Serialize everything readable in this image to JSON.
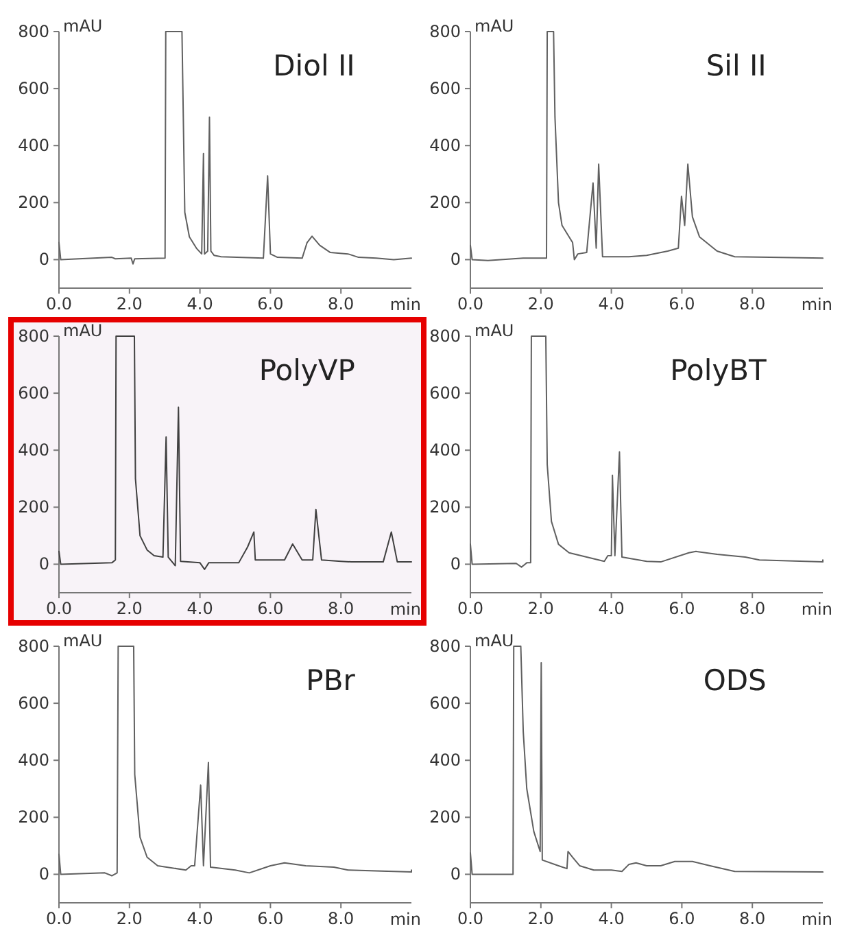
{
  "chart_data": [
    {
      "type": "line",
      "title": "Diol II",
      "xlabel": "min",
      "ylabel": "mAU",
      "xlim": [
        0,
        10
      ],
      "ylim": [
        -100,
        800
      ],
      "xticks": [
        {
          "value": 0,
          "label": "0.0"
        },
        {
          "value": 2,
          "label": "2.0"
        },
        {
          "value": 4,
          "label": "4.0"
        },
        {
          "value": 6,
          "label": "6.0"
        },
        {
          "value": 8,
          "label": "8.0"
        }
      ],
      "yticks": [
        0,
        200,
        400,
        600,
        800
      ],
      "series": [
        {
          "color": "#606060",
          "x": [
            0,
            0.05,
            1.5,
            1.6,
            2.05,
            2.1,
            2.15,
            3.01,
            3.03,
            3.49,
            3.57,
            3.7,
            3.9,
            4.05,
            4.1,
            4.13,
            4.22,
            4.27,
            4.31,
            4.4,
            4.6,
            5.8,
            5.92,
            6.0,
            6.2,
            6.9,
            7.04,
            7.18,
            7.4,
            7.7,
            8.2,
            8.5,
            9.0,
            9.5,
            10
          ],
          "values": [
            60,
            0,
            8,
            3,
            5,
            -15,
            3,
            5,
            800,
            800,
            166,
            80,
            40,
            20,
            372,
            20,
            30,
            500,
            30,
            15,
            10,
            5,
            294,
            20,
            8,
            5,
            60,
            82,
            50,
            25,
            20,
            8,
            5,
            0,
            5
          ]
        }
      ]
    },
    {
      "type": "line",
      "title": "Sil II",
      "xlabel": "min",
      "ylabel": "mAU",
      "xlim": [
        0,
        10
      ],
      "ylim": [
        -100,
        800
      ],
      "xticks": [
        {
          "value": 0,
          "label": "0.0"
        },
        {
          "value": 2,
          "label": "2.0"
        },
        {
          "value": 4,
          "label": "4.0"
        },
        {
          "value": 6,
          "label": "6.0"
        },
        {
          "value": 8,
          "label": "8.0"
        }
      ],
      "yticks": [
        0,
        200,
        400,
        600,
        800
      ],
      "series": [
        {
          "color": "#606060",
          "x": [
            0,
            0.05,
            0.5,
            1.5,
            2.16,
            2.18,
            2.36,
            2.4,
            2.5,
            2.6,
            2.8,
            2.9,
            2.95,
            3.05,
            3.3,
            3.48,
            3.57,
            3.64,
            3.75,
            4.5,
            5.0,
            5.6,
            5.9,
            5.99,
            6.08,
            6.17,
            6.3,
            6.5,
            7.0,
            7.5,
            8.5,
            10
          ],
          "values": [
            50,
            0,
            -3,
            5,
            5,
            800,
            800,
            500,
            200,
            120,
            80,
            60,
            0,
            20,
            25,
            269,
            40,
            335,
            10,
            10,
            15,
            30,
            40,
            222,
            120,
            335,
            150,
            80,
            30,
            10,
            8,
            5
          ]
        }
      ]
    },
    {
      "type": "line",
      "title": "PolyVP",
      "xlabel": "min",
      "ylabel": "mAU",
      "xlim": [
        0,
        10
      ],
      "ylim": [
        -100,
        800
      ],
      "xticks": [
        {
          "value": 0,
          "label": "0.0"
        },
        {
          "value": 2,
          "label": "2.0"
        },
        {
          "value": 4,
          "label": "4.0"
        },
        {
          "value": 6,
          "label": "6.0"
        },
        {
          "value": 8,
          "label": "8.0"
        }
      ],
      "yticks": [
        0,
        200,
        400,
        600,
        800
      ],
      "series": [
        {
          "color": "#404040",
          "x": [
            0,
            0.05,
            1.5,
            1.6,
            1.62,
            2.14,
            2.17,
            2.3,
            2.5,
            2.7,
            2.95,
            3.04,
            3.1,
            3.3,
            3.39,
            3.45,
            4.0,
            4.13,
            4.25,
            5.1,
            5.35,
            5.53,
            5.57,
            6.4,
            6.63,
            6.9,
            7.2,
            7.29,
            7.45,
            8.0,
            8.3,
            9.2,
            9.43,
            9.6,
            10
          ],
          "values": [
            45,
            0,
            5,
            15,
            800,
            800,
            300,
            100,
            50,
            30,
            25,
            446,
            25,
            -5,
            551,
            10,
            5,
            -18,
            5,
            5,
            60,
            113,
            15,
            15,
            71,
            15,
            15,
            192,
            15,
            10,
            8,
            8,
            113,
            8,
            8
          ]
        }
      ]
    },
    {
      "type": "line",
      "title": "PolyBT",
      "xlabel": "min",
      "ylabel": "mAU",
      "xlim": [
        0,
        10
      ],
      "ylim": [
        -100,
        800
      ],
      "xticks": [
        {
          "value": 0,
          "label": "0.0"
        },
        {
          "value": 2,
          "label": "2.0"
        },
        {
          "value": 4,
          "label": "4.0"
        },
        {
          "value": 6,
          "label": "6.0"
        },
        {
          "value": 8,
          "label": "8.0"
        }
      ],
      "yticks": [
        0,
        200,
        400,
        600,
        800
      ],
      "series": [
        {
          "color": "#606060",
          "x": [
            0,
            0.05,
            1.3,
            1.45,
            1.6,
            1.71,
            1.73,
            2.14,
            2.18,
            2.3,
            2.5,
            2.8,
            3.3,
            3.8,
            3.9,
            4.0,
            4.03,
            4.1,
            4.23,
            4.3,
            5.0,
            5.4,
            6.2,
            6.4,
            7.0,
            7.8,
            8.2,
            10,
            10
          ],
          "values": [
            70,
            0,
            3,
            -10,
            5,
            5,
            800,
            800,
            350,
            150,
            70,
            40,
            25,
            10,
            30,
            30,
            312,
            30,
            394,
            25,
            10,
            8,
            40,
            45,
            35,
            25,
            15,
            8,
            15
          ]
        }
      ]
    },
    {
      "type": "line",
      "title": "PBr",
      "xlabel": "min",
      "ylabel": "mAU",
      "xlim": [
        0,
        10
      ],
      "ylim": [
        -100,
        800
      ],
      "xticks": [
        {
          "value": 0,
          "label": "0.0"
        },
        {
          "value": 2,
          "label": "2.0"
        },
        {
          "value": 4,
          "label": "4.0"
        },
        {
          "value": 6,
          "label": "6.0"
        },
        {
          "value": 8,
          "label": "8.0"
        }
      ],
      "yticks": [
        0,
        200,
        400,
        600,
        800
      ],
      "series": [
        {
          "color": "#606060",
          "x": [
            0,
            0.05,
            1.3,
            1.5,
            1.65,
            1.68,
            2.12,
            2.15,
            2.3,
            2.5,
            2.8,
            3.6,
            3.75,
            3.85,
            4.02,
            4.1,
            4.24,
            4.3,
            5.0,
            5.4,
            6.0,
            6.4,
            7.0,
            7.8,
            8.2,
            10,
            10
          ],
          "values": [
            70,
            0,
            5,
            -5,
            5,
            800,
            800,
            350,
            130,
            60,
            30,
            15,
            30,
            30,
            313,
            30,
            392,
            25,
            15,
            5,
            30,
            40,
            30,
            25,
            15,
            8,
            15
          ]
        }
      ]
    },
    {
      "type": "line",
      "title": "ODS",
      "xlabel": "min",
      "ylabel": "mAU",
      "xlim": [
        0,
        10
      ],
      "ylim": [
        -100,
        800
      ],
      "xticks": [
        {
          "value": 0,
          "label": "0.0"
        },
        {
          "value": 2,
          "label": "2.0"
        },
        {
          "value": 4,
          "label": "4.0"
        },
        {
          "value": 6,
          "label": "6.0"
        },
        {
          "value": 8,
          "label": "8.0"
        }
      ],
      "yticks": [
        0,
        200,
        400,
        600,
        800
      ],
      "series": [
        {
          "color": "#606060",
          "x": [
            0,
            0.05,
            1.21,
            1.23,
            1.43,
            1.5,
            1.6,
            1.8,
            1.98,
            2.01,
            2.04,
            2.5,
            2.74,
            2.77,
            2.9,
            3.1,
            3.5,
            4.0,
            4.3,
            4.5,
            4.7,
            5.0,
            5.4,
            5.8,
            6.3,
            6.8,
            7.5,
            10
          ],
          "values": [
            75,
            0,
            0,
            800,
            800,
            500,
            300,
            150,
            80,
            742,
            50,
            30,
            20,
            80,
            60,
            30,
            15,
            15,
            10,
            35,
            40,
            30,
            30,
            45,
            45,
            30,
            10,
            8
          ]
        }
      ]
    }
  ]
}
